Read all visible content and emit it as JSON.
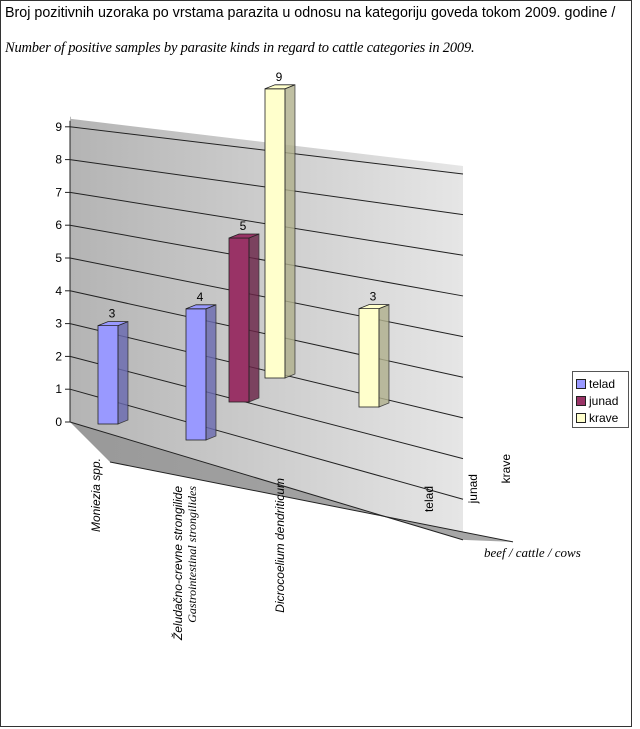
{
  "title": "Broj pozitivnih uzoraka po vrstama parazita u odnosu na kategoriju goveda tokom 2009. godine /",
  "subtitle": "Number of positive samples by parasite kinds in regard to cattle categories in 2009.",
  "chart_data": {
    "type": "bar",
    "categories": [
      "Moniezia spp.",
      "Želudačno-crevne strongilide",
      "Dicrocoelium dendriticum"
    ],
    "category_translations": [
      "",
      "Gastrointestinal strongilides",
      ""
    ],
    "series": [
      {
        "name": "telad",
        "values": [
          3,
          4,
          0
        ],
        "color": "#9999ff"
      },
      {
        "name": "junad",
        "values": [
          0,
          5,
          0
        ],
        "color": "#993366"
      },
      {
        "name": "krave",
        "values": [
          0,
          9,
          3
        ],
        "color": "#ffffcc"
      }
    ],
    "bars": [
      {
        "series": "telad",
        "category": "Moniezia spp.",
        "value": 3,
        "label": "3"
      },
      {
        "series": "telad",
        "category": "Želudačno-crevne strongilide",
        "value": 4,
        "label": "4"
      },
      {
        "series": "junad",
        "category": "Želudačno-crevne strongilide",
        "value": 5,
        "label": "5"
      },
      {
        "series": "krave",
        "category": "Želudačno-crevne strongilide",
        "value": 9,
        "label": "9"
      },
      {
        "series": "krave",
        "category": "Dicrocoelium dendriticum",
        "value": 3,
        "label": "3"
      }
    ],
    "y_ticks": [
      "0",
      "1",
      "2",
      "3",
      "4",
      "5",
      "6",
      "7",
      "8",
      "9"
    ],
    "ylim": [
      0,
      9
    ],
    "depth_labels": [
      "telad",
      "junad",
      "krave"
    ],
    "depth_axis_note": "beef / cattle / cows",
    "legend": [
      "telad",
      "junad",
      "krave"
    ],
    "style": "3d-column",
    "grid": true
  }
}
